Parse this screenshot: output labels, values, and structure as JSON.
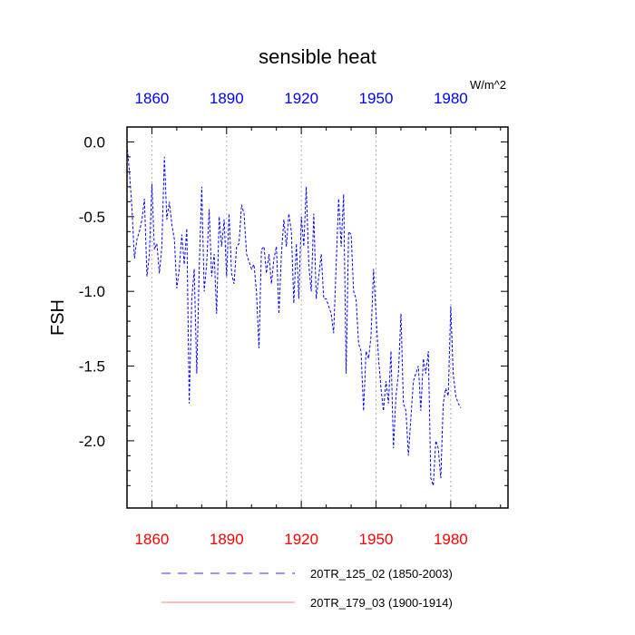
{
  "chart_data": {
    "type": "line",
    "title": "sensible heat",
    "units": "W/m^2",
    "ylabel": "FSH",
    "xlim": [
      1850,
      2003
    ],
    "ylim": [
      -2.45,
      0.1
    ],
    "x_ticks": [
      1860,
      1890,
      1920,
      1950,
      1980
    ],
    "y_ticks": [
      0.0,
      -0.5,
      -1.0,
      -1.5,
      -2.0
    ],
    "y_tick_labels": [
      "0.0",
      "-0.5",
      "-1.0",
      "-1.5",
      "-2.0"
    ],
    "grid": "vertical dotted at x ticks",
    "top_axis_color": "#0000ff",
    "bottom_axis_color": "#ff0000",
    "series": [
      {
        "name": "20TR_125_02 (1850-2003)",
        "color": "#0000ff",
        "style": "dashed",
        "x_start": 1850,
        "values": [
          -0.02,
          -0.2,
          -0.45,
          -0.78,
          -0.65,
          -0.6,
          -0.52,
          -0.38,
          -0.9,
          -0.75,
          -0.28,
          -0.72,
          -0.68,
          -0.88,
          -0.7,
          -0.1,
          -0.52,
          -0.4,
          -0.55,
          -0.65,
          -0.98,
          -0.85,
          -0.62,
          -0.82,
          -0.58,
          -1.75,
          -1.05,
          -0.85,
          -1.55,
          -0.85,
          -0.3,
          -1.0,
          -0.82,
          -0.45,
          -0.9,
          -0.75,
          -1.15,
          -0.5,
          -0.7,
          -0.52,
          -0.9,
          -0.48,
          -0.88,
          -0.95,
          -0.7,
          -0.68,
          -0.42,
          -0.48,
          -0.75,
          -0.8,
          -0.85,
          -0.82,
          -1.0,
          -1.38,
          -0.72,
          -0.7,
          -0.88,
          -0.75,
          -0.95,
          -0.78,
          -0.7,
          -1.15,
          -0.75,
          -0.52,
          -0.7,
          -0.48,
          -0.6,
          -1.08,
          -0.68,
          -1.05,
          -0.5,
          -0.7,
          -0.3,
          -0.82,
          -1.0,
          -0.48,
          -1.05,
          -0.9,
          -0.75,
          -1.05,
          -1.05,
          -1.1,
          -1.15,
          -1.28,
          -0.82,
          -0.38,
          -0.7,
          -0.35,
          -1.55,
          -0.6,
          -0.62,
          -1.0,
          -1.05,
          -1.35,
          -1.4,
          -1.8,
          -1.4,
          -1.45,
          -1.3,
          -0.85,
          -1.15,
          -1.45,
          -1.65,
          -1.8,
          -1.6,
          -1.75,
          -1.4,
          -2.05,
          -1.7,
          -1.55,
          -1.15,
          -1.75,
          -1.8,
          -2.1,
          -1.85,
          -1.6,
          -1.55,
          -1.5,
          -1.8,
          -1.45,
          -1.55,
          -1.4,
          -2.25,
          -2.3,
          -2.0,
          -2.05,
          -2.25,
          -1.75,
          -1.65,
          -1.7,
          -1.1,
          -1.55,
          -1.7,
          -1.75,
          -1.78
        ]
      },
      {
        "name": "20TR_179_03 (1900-1914)",
        "color": "#ff0000",
        "style": "solid",
        "values": []
      }
    ]
  }
}
